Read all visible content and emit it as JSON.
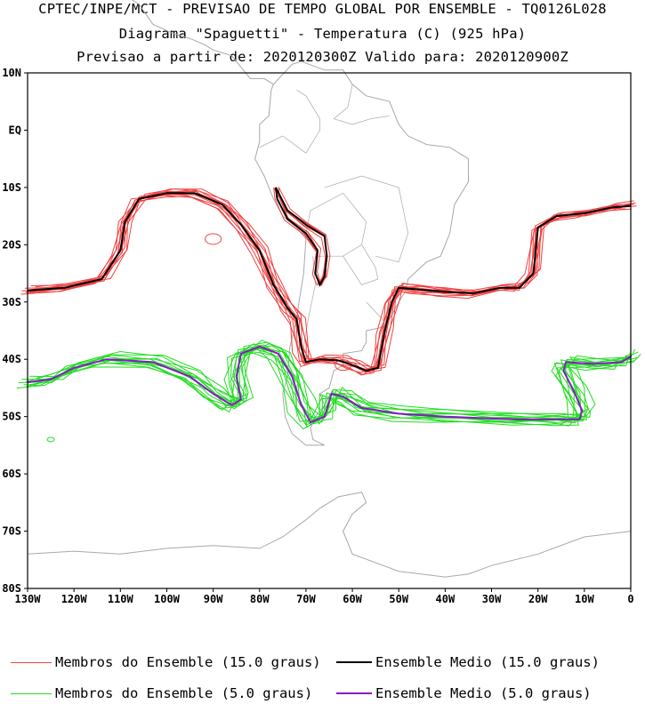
{
  "header": {
    "line1": "CPTEC/INPE/MCT - PREVISAO DE TEMPO GLOBAL POR ENSEMBLE - TQ0126L028",
    "line2": "Diagrama \"Spaguetti\" - Temperatura (C) (925 hPa)",
    "line3": "Previsao a partir de: 2020120300Z  Valido para: 2020120900Z"
  },
  "axes": {
    "lat_labels": [
      "10N",
      "EQ",
      "10S",
      "20S",
      "30S",
      "40S",
      "50S",
      "60S",
      "70S",
      "80S"
    ],
    "lon_labels": [
      "130W",
      "120W",
      "110W",
      "100W",
      "90W",
      "80W",
      "70W",
      "60W",
      "50W",
      "40W",
      "30W",
      "20W",
      "10W",
      "0"
    ]
  },
  "legend": {
    "members_15": "Membros do Ensemble (15.0 graus)",
    "mean_15": "Ensemble Medio (15.0 graus)",
    "members_5": "Membros do Ensemble (5.0 graus)",
    "mean_5": "Ensemble Medio (5.0 graus)"
  },
  "colors": {
    "members_15": "#f04040",
    "mean_15": "#000000",
    "members_5": "#22dd22",
    "mean_5": "#8a18c8",
    "coast": "#a8a8a8"
  },
  "chart_data": {
    "type": "spaghetti-map",
    "variable": "Temperatura (C) 925 hPa",
    "lon_range": [
      -130,
      0
    ],
    "lat_range": [
      -80,
      10
    ],
    "contours": [
      {
        "name": "Ensemble Medio (15.0 graus)",
        "points": [
          [
            -130,
            -28
          ],
          [
            -122,
            -27.5
          ],
          [
            -114,
            -26
          ],
          [
            -110,
            -21
          ],
          [
            -109,
            -16
          ],
          [
            -106,
            -12
          ],
          [
            -100,
            -11
          ],
          [
            -94,
            -11
          ],
          [
            -88,
            -13
          ],
          [
            -84,
            -16.5
          ],
          [
            -80,
            -21
          ],
          [
            -77,
            -27
          ],
          [
            -74,
            -31
          ],
          [
            -72,
            -33
          ],
          [
            -71,
            -38
          ],
          [
            -70,
            -40.5
          ],
          [
            -67,
            -40
          ],
          [
            -63,
            -40.2
          ],
          [
            -60,
            -41
          ],
          [
            -57,
            -42
          ],
          [
            -54.5,
            -41.5
          ],
          [
            -53,
            -35
          ],
          [
            -51.5,
            -30
          ],
          [
            -50,
            -27.5
          ],
          [
            -46,
            -27.8
          ],
          [
            -40,
            -28.2
          ],
          [
            -34,
            -28.5
          ],
          [
            -28,
            -27.5
          ],
          [
            -24,
            -27.5
          ],
          [
            -21,
            -25
          ],
          [
            -20,
            -17
          ],
          [
            -16,
            -15
          ],
          [
            -10,
            -14.5
          ],
          [
            -4,
            -13.5
          ],
          [
            0,
            -13.2
          ]
        ]
      },
      {
        "name": "Ensemble Medio (15.0 graus) Andes",
        "closed": true,
        "points": [
          [
            -76.5,
            -10
          ],
          [
            -74,
            -14
          ],
          [
            -70,
            -16.5
          ],
          [
            -66,
            -18.5
          ],
          [
            -65.5,
            -22
          ],
          [
            -66,
            -25.5
          ],
          [
            -67,
            -27
          ],
          [
            -68,
            -25
          ],
          [
            -67.5,
            -21
          ],
          [
            -70,
            -18
          ],
          [
            -74,
            -15.5
          ],
          [
            -76.2,
            -12
          ]
        ]
      },
      {
        "name": "Ensemble Medio (5.0 graus)",
        "points": [
          [
            -130,
            -44
          ],
          [
            -125,
            -43.5
          ],
          [
            -120,
            -41.5
          ],
          [
            -113,
            -40
          ],
          [
            -103,
            -40.5
          ],
          [
            -95,
            -43
          ],
          [
            -90,
            -46
          ],
          [
            -86,
            -48
          ],
          [
            -84,
            -47
          ],
          [
            -85,
            -43
          ],
          [
            -84,
            -39
          ],
          [
            -80,
            -37.8
          ],
          [
            -76,
            -39
          ],
          [
            -73,
            -43
          ],
          [
            -71,
            -48
          ],
          [
            -69,
            -51
          ],
          [
            -66,
            -50
          ],
          [
            -64.5,
            -46
          ],
          [
            -62,
            -46.5
          ],
          [
            -58,
            -48.5
          ],
          [
            -50,
            -49.5
          ],
          [
            -40,
            -50
          ],
          [
            -25,
            -50.5
          ],
          [
            -15,
            -50.5
          ],
          [
            -11,
            -50.5
          ],
          [
            -10.5,
            -49
          ],
          [
            -12,
            -46
          ],
          [
            -14.5,
            -42
          ],
          [
            -14,
            -40.5
          ],
          [
            -8,
            -40.8
          ],
          [
            -2,
            -40.5
          ],
          [
            0,
            -39.5
          ]
        ]
      }
    ],
    "members_15_count": 11,
    "members_5_count": 13,
    "isolated_contours": [
      {
        "name": "member-5-isle",
        "center": [
          -125,
          -54
        ],
        "color": "members_5"
      },
      {
        "name": "member-15-blob-1",
        "center": [
          -90,
          -19
        ],
        "color": "members_15"
      },
      {
        "name": "member-15-blob-2",
        "center": [
          -62,
          -41
        ],
        "color": "members_15"
      }
    ]
  }
}
